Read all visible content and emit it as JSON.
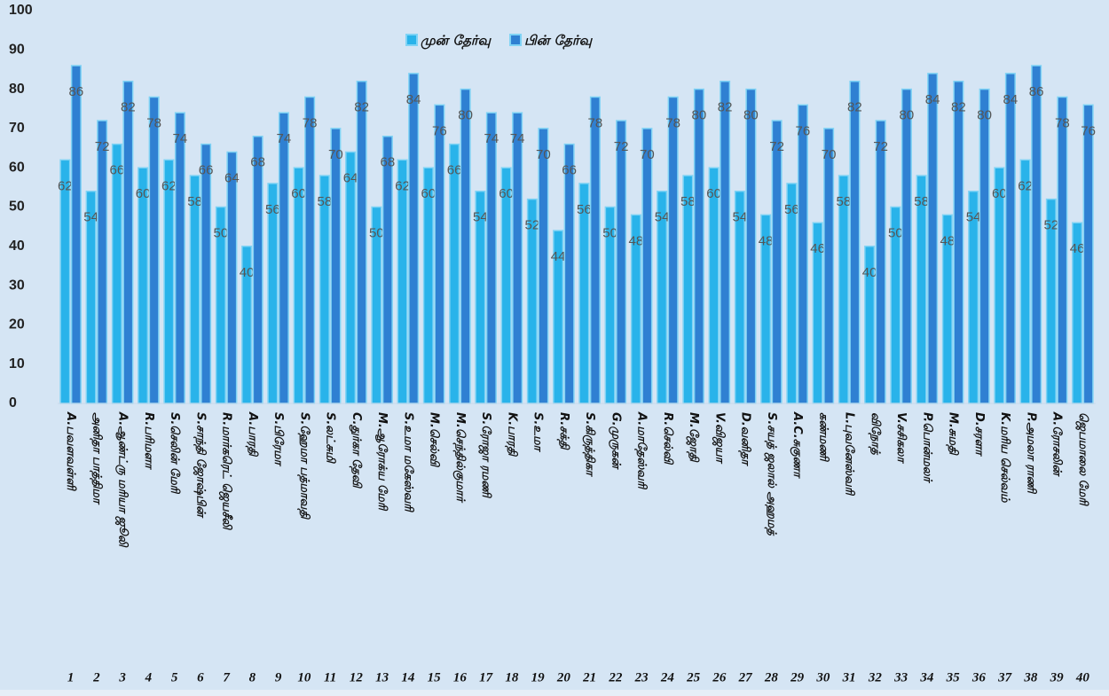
{
  "chart_data": {
    "type": "bar",
    "categories": [
      "A.பவளவள்ளி",
      "அனிதா பாத்திமா",
      "A.ஆண்ட்ரு மரியா ஜூலி",
      "R.பரிமளா",
      "S.செலின் மேரி",
      "S.சாந்தி ஜோஷ்பின்",
      "R.மார்கரெட் ஜெயசீலி",
      "A.பாரதி",
      "S.பிரேமா",
      "S.ஹேமா பத்மாவதி",
      "S.லட்சுமி",
      "C.துர்கா தேவி",
      "M.ஆரோக்ய மேரி",
      "S.உமா மகேஸ்வரி",
      "M.செல்வி",
      "M.செந்தில்குமார்",
      "S.ரோஜா ரமணி",
      "K.பாரதி",
      "S.உமா",
      "R.சக்தி",
      "S.கிருத்திகா",
      "G.முருகன்",
      "A.மாதேஸ்வரி",
      "R.செல்வி",
      "M.ஜோதி",
      "V.விஜயா",
      "D.வனிதா",
      "S.சயத் ஜலால் அஹமத்",
      "A.C.சுகுணா",
      "கண்மணி",
      "L.புவனேஸ்வரி",
      "விநோத்",
      "V.சசிகலா",
      "P.பொன்மலர்",
      "M.சுமதி",
      "D.சரளா",
      "K.மரிய செல்வம்",
      "P.அமலா ராணி",
      "A.ரோசலின்",
      "ஜெபமாலை மேரி"
    ],
    "serial_numbers": [
      1,
      2,
      3,
      4,
      5,
      6,
      7,
      8,
      9,
      10,
      11,
      12,
      13,
      14,
      15,
      16,
      17,
      18,
      19,
      20,
      21,
      22,
      23,
      24,
      25,
      26,
      27,
      28,
      29,
      30,
      31,
      32,
      33,
      34,
      35,
      36,
      37,
      38,
      39,
      40
    ],
    "series": [
      {
        "name": "முன் தேர்வு",
        "color": "#29b3ea",
        "values": [
          62,
          54,
          66,
          60,
          62,
          58,
          50,
          40,
          56,
          60,
          58,
          64,
          50,
          62,
          60,
          66,
          54,
          60,
          52,
          44,
          56,
          50,
          48,
          54,
          58,
          60,
          54,
          48,
          56,
          46,
          58,
          40,
          50,
          58,
          48,
          54,
          60,
          62,
          52,
          46
        ]
      },
      {
        "name": "பின் தேர்வு",
        "color": "#2f80d2",
        "values": [
          86,
          72,
          82,
          78,
          74,
          66,
          64,
          68,
          74,
          78,
          70,
          82,
          68,
          84,
          76,
          80,
          74,
          74,
          70,
          66,
          78,
          72,
          70,
          78,
          80,
          82,
          80,
          72,
          76,
          70,
          82,
          72,
          80,
          84,
          82,
          80,
          84,
          86,
          78,
          76
        ]
      }
    ],
    "ylim": [
      0,
      100
    ],
    "yticks": [
      0,
      10,
      20,
      30,
      40,
      50,
      60,
      70,
      80,
      90,
      100
    ],
    "grid": false,
    "legend": "top"
  }
}
